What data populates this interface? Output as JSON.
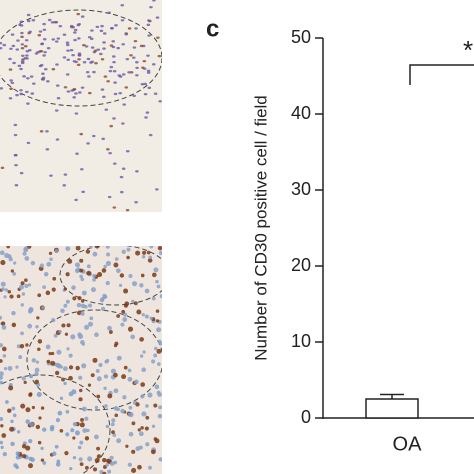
{
  "chart_data": {
    "type": "bar",
    "panel_label": "c",
    "ylabel": "Number of CD30 positive cell / field",
    "categories": [
      "OA"
    ],
    "values": [
      2.5
    ],
    "errors": [
      0.6
    ],
    "color": "#ffffff",
    "ylim": [
      0,
      50
    ],
    "yticks": [
      0,
      10,
      20,
      30,
      40,
      50
    ],
    "annotation": "*"
  }
}
